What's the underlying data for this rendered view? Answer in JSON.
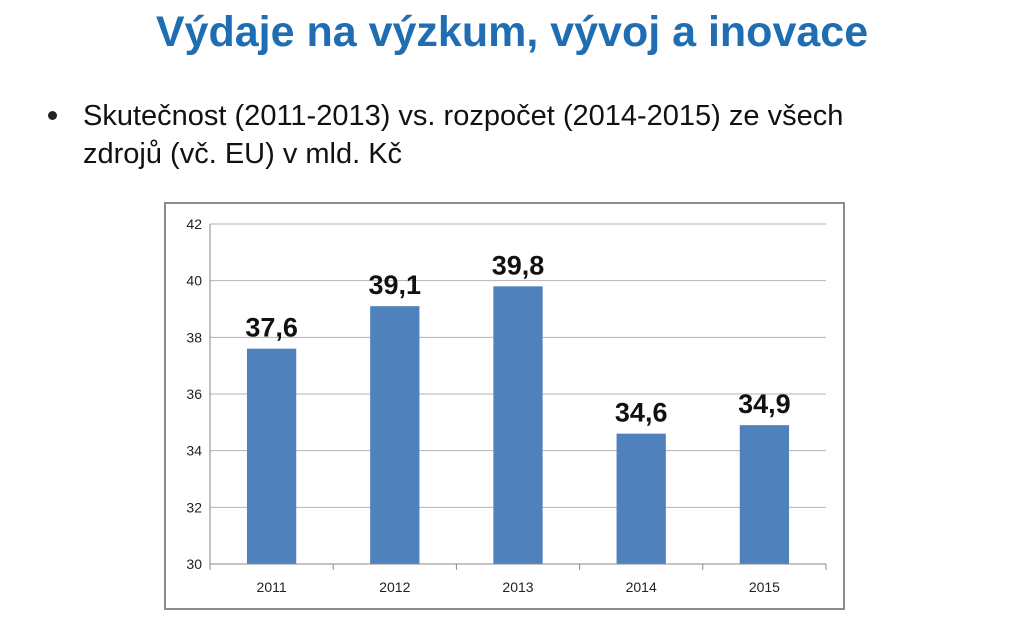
{
  "slide": {
    "title": "Výdaje na výzkum, vývoj a inovace",
    "bullet": "Skutečnost (2011-2013) vs. rozpočet (2014-2015) ze všech zdrojů (vč. EU) v mld. Kč"
  },
  "chart_data": {
    "type": "bar",
    "categories": [
      "2011",
      "2012",
      "2013",
      "2014",
      "2015"
    ],
    "values": [
      37.6,
      39.1,
      39.8,
      34.6,
      34.9
    ],
    "data_labels": [
      "37,6",
      "39,1",
      "39,8",
      "34,6",
      "34,9"
    ],
    "ylim": [
      30,
      42
    ],
    "y_ticks": [
      30,
      32,
      34,
      36,
      38,
      40,
      42
    ],
    "grid": true,
    "legend": "none",
    "bar_color": "#4f81bd",
    "title": "",
    "xlabel": "",
    "ylabel": ""
  }
}
